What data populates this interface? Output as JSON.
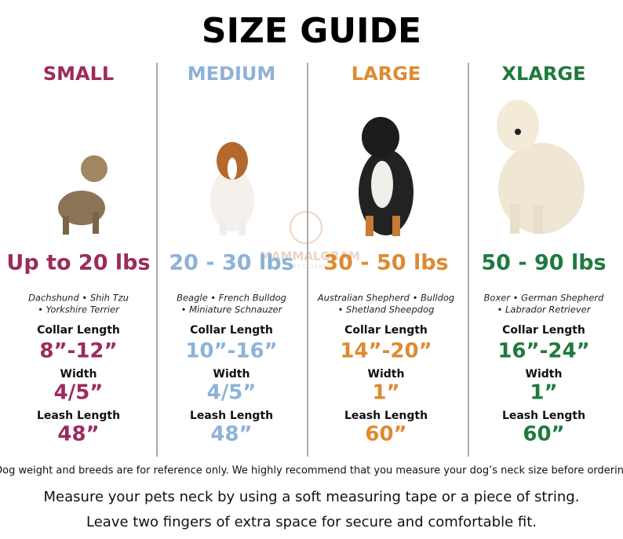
{
  "header": {
    "title": "SIZE GUIDE"
  },
  "watermark": {
    "brand": "MAMMALGRAM",
    "tagline": "PET COLLARS"
  },
  "columns": [
    {
      "name": "SMALL",
      "color": "#9c2b5c",
      "weight": "Up to 20 lbs",
      "breeds": [
        "Dachshund • Shih Tzu",
        "• Yorkshire Terrier"
      ],
      "collar_label": "Collar Length",
      "collar": "8”-12”",
      "width_label": "Width",
      "width": "4/5”",
      "leash_label": "Leash Length",
      "leash": "48”"
    },
    {
      "name": "MEDIUM",
      "color": "#8db2d8",
      "weight": "20 - 30 lbs",
      "breeds": [
        "Beagle • French Bulldog",
        "• Miniature Schnauzer"
      ],
      "collar_label": "Collar Length",
      "collar": "10”-16”",
      "width_label": "Width",
      "width": "4/5”",
      "leash_label": "Leash Length",
      "leash": "48”"
    },
    {
      "name": "LARGE",
      "color": "#df8a30",
      "weight": "30 - 50 lbs",
      "breeds": [
        "Australian Shepherd • Bulldog",
        "• Shetland Sheepdog"
      ],
      "collar_label": "Collar Length",
      "collar": "14”-20”",
      "width_label": "Width",
      "width": "1”",
      "leash_label": "Leash Length",
      "leash": "60”"
    },
    {
      "name": "XLARGE",
      "color": "#1f7a3d",
      "weight": "50 - 90 lbs",
      "breeds": [
        "Boxer • German Shepherd",
        "• Labrador Retriever"
      ],
      "collar_label": "Collar Length",
      "collar": "16”-24”",
      "width_label": "Width",
      "width": "1”",
      "leash_label": "Leash Length",
      "leash": "60”"
    }
  ],
  "footnote": "*Dog weight and breeds are for reference only. We highly recommend that you measure your dog’s neck size before ordering.",
  "instructions": [
    "Measure your pets neck by using a soft measuring tape or a piece of string.",
    "Leave two fingers of extra space for secure and comfortable fit."
  ]
}
